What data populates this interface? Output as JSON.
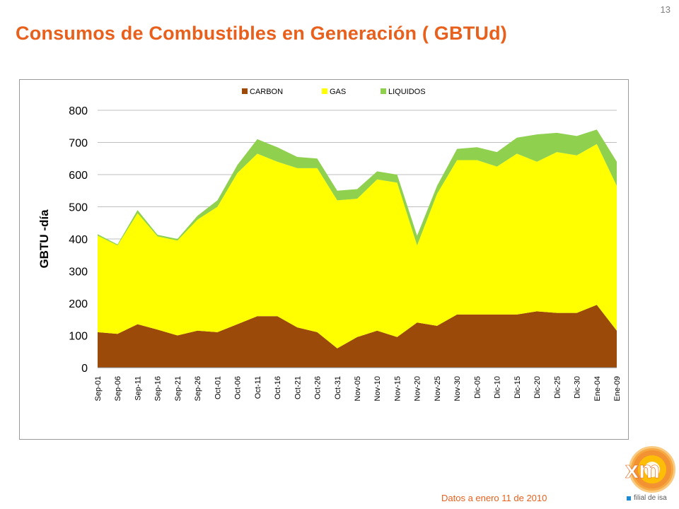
{
  "slide": {
    "page_number": "13",
    "title": "Consumos de Combustibles en Generación ( GBTUd)",
    "footer_note": "Datos a enero 11 de 2010",
    "logo_text": "xm",
    "logo_tagline": "filial de isa"
  },
  "colors": {
    "title": "#e8601c",
    "carbon": "#9b4a0a",
    "gas": "#ffff00",
    "liquidos": "#8fd14f"
  },
  "chart_data": {
    "type": "area",
    "stacked": true,
    "title": "",
    "xlabel": "",
    "ylabel": "GBTU -día",
    "ylim": [
      0,
      800
    ],
    "yticks": [
      0,
      100,
      200,
      300,
      400,
      500,
      600,
      700,
      800
    ],
    "grid": true,
    "legend_position": "top",
    "x": [
      "Sep-01",
      "Sep-06",
      "Sep-11",
      "Sep-16",
      "Sep-21",
      "Sep-26",
      "Oct-01",
      "Oct-06",
      "Oct-11",
      "Oct-16",
      "Oct-21",
      "Oct-26",
      "Oct-31",
      "Nov-05",
      "Nov-10",
      "Nov-15",
      "Nov-20",
      "Nov-25",
      "Nov-30",
      "Dic-05",
      "Dic-10",
      "Dic-15",
      "Dic-20",
      "Dic-25",
      "Dic-30",
      "Ene-04",
      "Ene-09"
    ],
    "series": [
      {
        "name": "CARBON",
        "color": "#9b4a0a",
        "values": [
          110,
          105,
          135,
          118,
          100,
          115,
          110,
          135,
          160,
          160,
          125,
          110,
          60,
          95,
          115,
          95,
          140,
          130,
          165,
          165,
          165,
          165,
          175,
          170,
          170,
          195,
          115
        ]
      },
      {
        "name": "GAS",
        "color": "#ffff00",
        "values": [
          300,
          275,
          345,
          290,
          295,
          345,
          390,
          470,
          505,
          480,
          495,
          510,
          460,
          430,
          470,
          480,
          240,
          410,
          480,
          480,
          460,
          500,
          465,
          500,
          490,
          500,
          450
        ]
      },
      {
        "name": "LIQUIDOS",
        "color": "#8fd14f",
        "values": [
          5,
          3,
          10,
          5,
          5,
          12,
          20,
          25,
          45,
          45,
          35,
          30,
          30,
          30,
          25,
          25,
          30,
          25,
          35,
          40,
          45,
          50,
          85,
          60,
          60,
          45,
          75
        ]
      }
    ]
  }
}
